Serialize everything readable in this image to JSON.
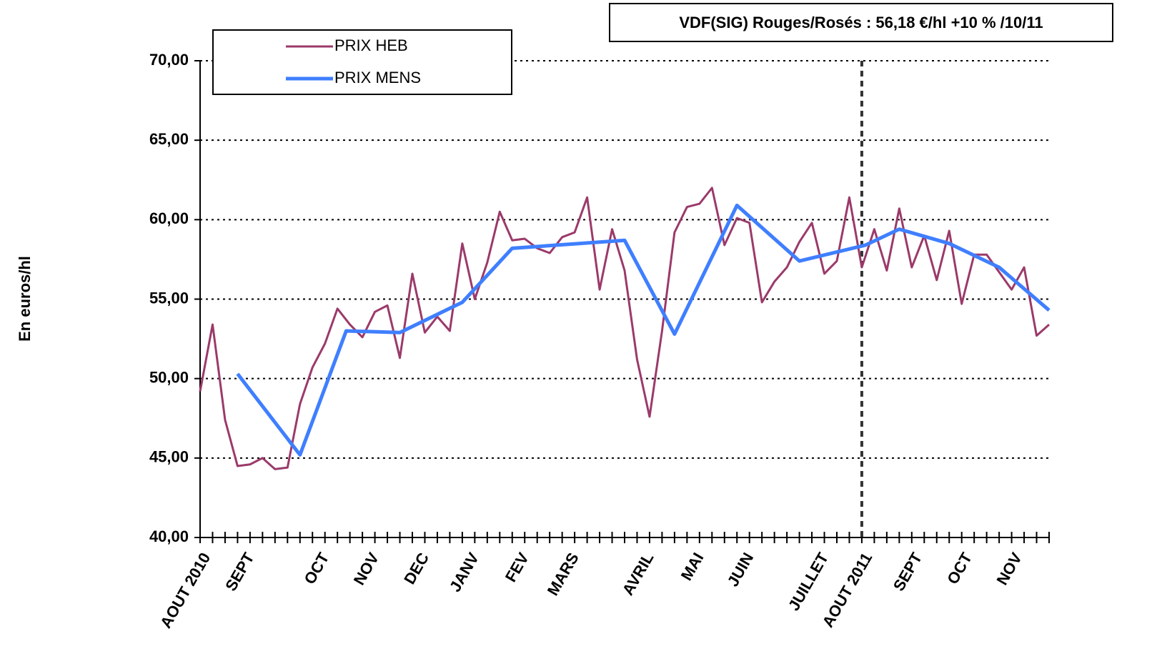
{
  "chart_data": {
    "type": "line",
    "annotation": "VDF(SIG) Rouges/Rosés : 56,18 €/hl +10 % /10/11",
    "y_label": "En euros/hl",
    "xlim": [
      0,
      68
    ],
    "ylim": [
      40,
      70
    ],
    "yticks": [
      {
        "value": 40,
        "label": "40,00"
      },
      {
        "value": 45,
        "label": "45,00"
      },
      {
        "value": 50,
        "label": "50,00"
      },
      {
        "value": 55,
        "label": "55,00"
      },
      {
        "value": 60,
        "label": "60,00"
      },
      {
        "value": 65,
        "label": "65,00"
      },
      {
        "value": 70,
        "label": "70,00"
      }
    ],
    "xticks": [
      {
        "value": 0,
        "label": "AOUT 2010"
      },
      {
        "value": 3.5,
        "label": "SEPT"
      },
      {
        "value": 9.5,
        "label": "OCT"
      },
      {
        "value": 13.5,
        "label": "NOV"
      },
      {
        "value": 17.5,
        "label": "DEC"
      },
      {
        "value": 21.5,
        "label": "JANV"
      },
      {
        "value": 25.5,
        "label": "FEV"
      },
      {
        "value": 29.5,
        "label": "MARS"
      },
      {
        "value": 35.5,
        "label": "AVRIL"
      },
      {
        "value": 39.5,
        "label": "MAI"
      },
      {
        "value": 43.5,
        "label": "JUIN"
      },
      {
        "value": 49.5,
        "label": "JUILLET"
      },
      {
        "value": 53,
        "label": "AOUT 2011"
      },
      {
        "value": 57,
        "label": "SEPT"
      },
      {
        "value": 61,
        "label": "OCT"
      },
      {
        "value": 65,
        "label": "NOV"
      }
    ],
    "vline_x": 53,
    "grid": true,
    "legend": "top-left",
    "series": [
      {
        "name": "PRIX HEB",
        "color": "#9b3a6a",
        "width": 3,
        "x": [
          0,
          1,
          2,
          3,
          4,
          5,
          6,
          7,
          8,
          9,
          10,
          11,
          12,
          13,
          14,
          15,
          16,
          17,
          18,
          19,
          20,
          21,
          22,
          23,
          24,
          25,
          26,
          27,
          28,
          29,
          30,
          31,
          32,
          33,
          34,
          35,
          36,
          37,
          38,
          39,
          40,
          41,
          42,
          43,
          44,
          45,
          46,
          47,
          48,
          49,
          50,
          51,
          52,
          53,
          54,
          55,
          56,
          57,
          58,
          59,
          60,
          61,
          62,
          63,
          64,
          65,
          66,
          67,
          68
        ],
        "values": [
          49.2,
          53.4,
          47.4,
          44.5,
          44.6,
          45.0,
          44.3,
          44.4,
          48.4,
          50.7,
          52.2,
          54.4,
          53.4,
          52.6,
          54.2,
          54.6,
          51.3,
          56.6,
          52.9,
          53.9,
          53.0,
          58.5,
          55.0,
          57.3,
          60.5,
          58.7,
          58.8,
          58.2,
          57.9,
          58.9,
          59.2,
          61.4,
          55.6,
          59.4,
          56.8,
          51.2,
          47.6,
          53.0,
          59.2,
          60.8,
          61.0,
          62.0,
          58.4,
          60.1,
          59.8,
          54.8,
          56.1,
          57.0,
          58.6,
          59.8,
          56.6,
          57.4,
          61.4,
          57.0,
          59.4,
          56.8,
          60.7,
          57.0,
          59.0,
          56.2,
          59.3,
          54.7,
          57.8,
          57.8,
          56.7,
          55.6,
          57.0,
          52.7,
          53.4
        ]
      },
      {
        "name": "PRIX MENS",
        "color": "#3f7fff",
        "width": 5,
        "x": [
          3,
          8,
          11.7,
          16,
          21,
          25,
          34,
          38,
          43,
          48,
          53.3,
          56,
          60,
          64,
          68
        ],
        "values": [
          50.3,
          45.2,
          53.0,
          52.9,
          54.8,
          58.2,
          58.7,
          52.8,
          60.9,
          57.4,
          58.4,
          59.4,
          58.5,
          57.0,
          54.3
        ]
      }
    ]
  }
}
